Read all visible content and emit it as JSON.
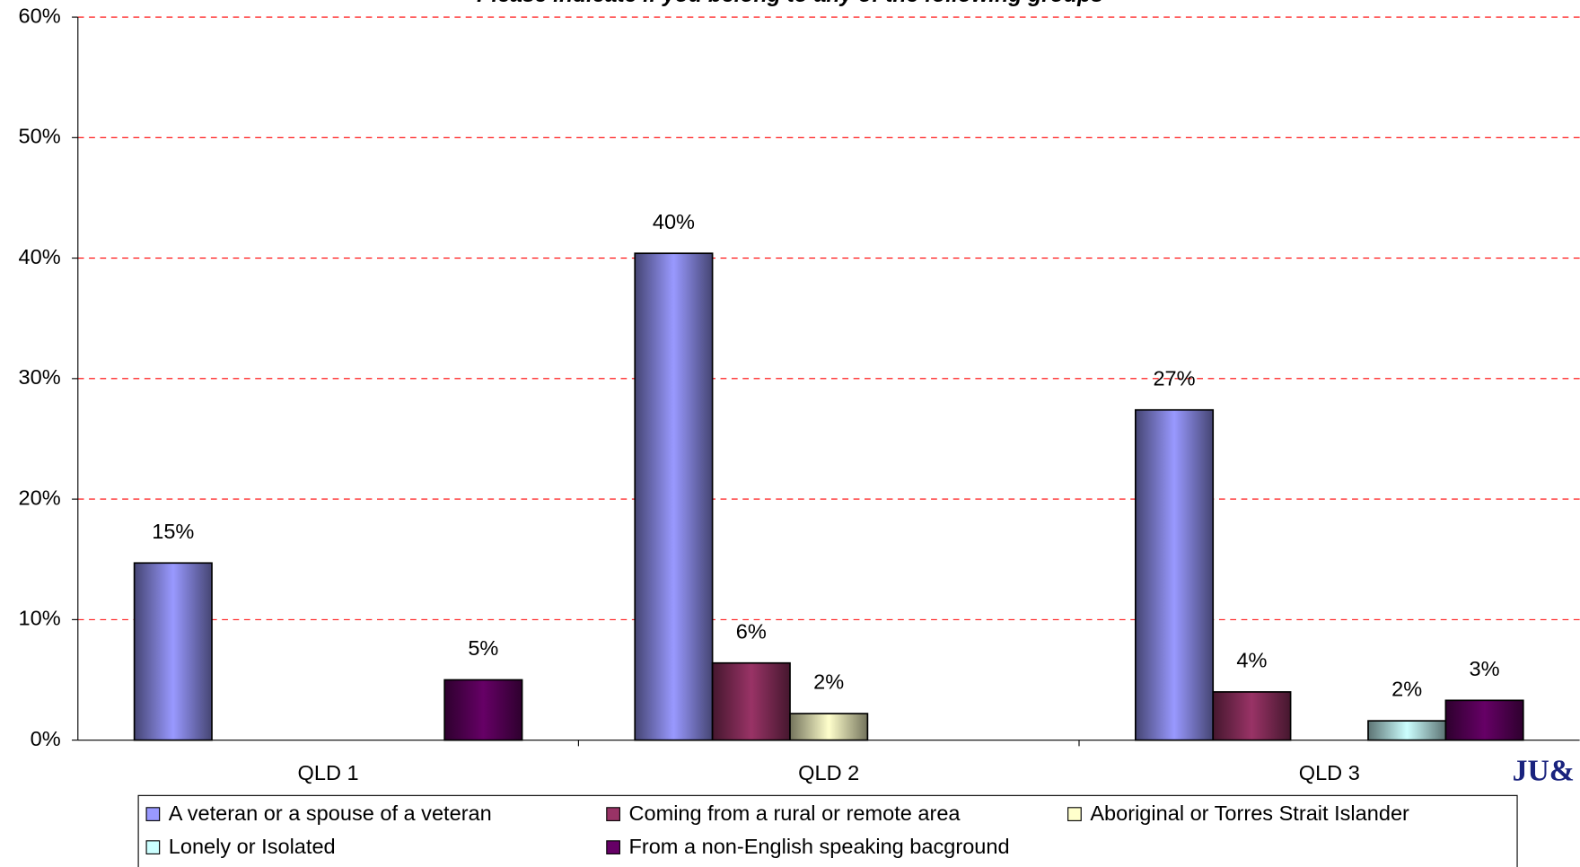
{
  "chart_data": {
    "type": "bar",
    "title": "Please indicate if you belong to any of the following groups",
    "categories": [
      "QLD 1",
      "QLD 2",
      "QLD 3"
    ],
    "series": [
      {
        "name": "A veteran or a spouse of a veteran",
        "color": "#9999ff",
        "values": [
          14.7,
          40.4,
          27.4
        ],
        "value_labels": [
          "15%",
          "40%",
          "27%"
        ]
      },
      {
        "name": "Coming from a rural or remote area",
        "color": "#993366",
        "values": [
          null,
          6.4,
          4.0
        ],
        "value_labels": [
          null,
          "6%",
          "4%"
        ]
      },
      {
        "name": "Aboriginal or Torres Strait Islander",
        "color": "#ffffcc",
        "values": [
          null,
          2.2,
          null
        ],
        "value_labels": [
          null,
          "2%",
          null
        ]
      },
      {
        "name": "Lonely or Isolated",
        "color": "#ccffff",
        "values": [
          null,
          null,
          1.6
        ],
        "value_labels": [
          null,
          null,
          "2%"
        ]
      },
      {
        "name": "From a non-English speaking bacground",
        "color": "#660066",
        "values": [
          5.0,
          null,
          3.3
        ],
        "value_labels": [
          "5%",
          null,
          "3%"
        ]
      }
    ],
    "ylim": [
      0,
      60
    ],
    "yticks": [
      {
        "value": 0,
        "label": "0%"
      },
      {
        "value": 10,
        "label": "10%"
      },
      {
        "value": 20,
        "label": "20%"
      },
      {
        "value": 30,
        "label": "30%"
      },
      {
        "value": 40,
        "label": "40%"
      },
      {
        "value": 50,
        "label": "50%"
      },
      {
        "value": 60,
        "label": "60%"
      }
    ],
    "grid": true,
    "grid_color": "#ff0000",
    "legend": "bottom",
    "logo": "JU&"
  }
}
